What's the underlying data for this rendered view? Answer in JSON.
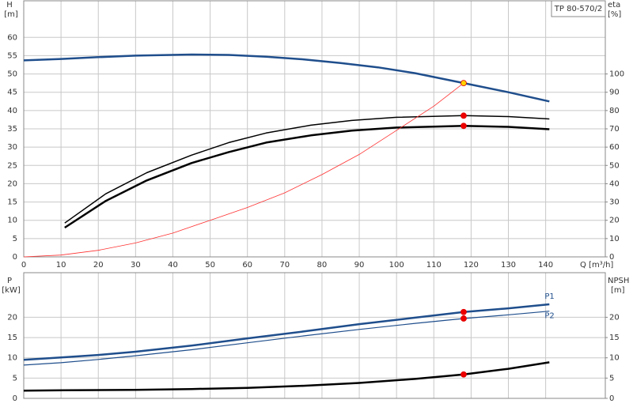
{
  "chart_data": [
    {
      "type": "line",
      "title": "TP 80-570/2",
      "ylabel": "H",
      "yunit": "[m]",
      "y2label": "eta",
      "y2unit": "[%]",
      "xlabel": "Q [m³/h]",
      "xlim": [
        0,
        156
      ],
      "xticks": [
        0,
        10,
        20,
        30,
        40,
        50,
        60,
        70,
        80,
        90,
        100,
        110,
        120,
        130,
        140
      ],
      "ylim": [
        0,
        70
      ],
      "yticks": [
        0,
        5,
        10,
        15,
        20,
        25,
        30,
        35,
        40,
        45,
        50,
        55,
        60
      ],
      "y2lim": [
        0,
        140
      ],
      "y2ticks": [
        0,
        10,
        20,
        30,
        40,
        50,
        60,
        70,
        80,
        90,
        100
      ],
      "grid": true,
      "series": [
        {
          "color": "#1f4e8c",
          "width": 2.5,
          "x": [
            0,
            10,
            20,
            30,
            45,
            55,
            65,
            75,
            85,
            95,
            105,
            118,
            130,
            141
          ],
          "values": [
            53.7,
            54.1,
            54.6,
            55,
            55.3,
            55.2,
            54.7,
            54,
            53,
            51.8,
            50.2,
            47.5,
            45,
            42.5
          ]
        },
        {
          "color": "#000000",
          "width": 1.5,
          "axis": "y2",
          "x": [
            11,
            22,
            33,
            45,
            55,
            65,
            77,
            88,
            100,
            118,
            130,
            141
          ],
          "values": [
            18.5,
            34.5,
            46,
            55.6,
            62.5,
            67.7,
            72,
            74.6,
            76.3,
            77.2,
            76.7,
            75.4
          ]
        },
        {
          "color": "#000000",
          "width": 2.5,
          "axis": "y2",
          "x": [
            11,
            22,
            33,
            45,
            55,
            65,
            77,
            88,
            100,
            118,
            130,
            141
          ],
          "values": [
            16,
            30.6,
            41.8,
            51.3,
            57.3,
            62.5,
            66.4,
            69,
            70.7,
            71.6,
            71.1,
            69.8
          ]
        },
        {
          "color": "#ff3030",
          "width": 0.8,
          "x": [
            0,
            10,
            20,
            30,
            40,
            50,
            60,
            70,
            80,
            90,
            100,
            110,
            118
          ],
          "values": [
            0,
            0.5,
            1.8,
            3.8,
            6.5,
            10,
            13.5,
            17.5,
            22.5,
            28,
            34.6,
            41.2,
            47.5
          ]
        }
      ],
      "points": [
        {
          "x": 118,
          "value": 47.5,
          "color": "#ffd200"
        },
        {
          "x": 118,
          "value": 77.2,
          "axis": "y2",
          "color": "#ee0000"
        },
        {
          "x": 118,
          "value": 71.6,
          "axis": "y2",
          "color": "#ee0000"
        }
      ]
    },
    {
      "type": "line",
      "ylabel": "P",
      "yunit": "[kW]",
      "y2label": "NPSH",
      "y2unit": "[m]",
      "xlim": [
        0,
        156
      ],
      "xgrid": [
        0,
        10,
        20,
        30,
        40,
        50,
        60,
        70,
        80,
        90,
        100,
        110,
        120,
        130,
        140
      ],
      "ylim": [
        0,
        31
      ],
      "yticks": [
        0,
        5,
        10,
        15,
        20
      ],
      "y2lim": [
        0,
        31
      ],
      "y2ticks": [
        0,
        5,
        10,
        15,
        20
      ],
      "grid": true,
      "series": [
        {
          "name": "P1",
          "color": "#1f4e8c",
          "width": 2.5,
          "x": [
            0,
            10,
            20,
            30,
            45,
            60,
            75,
            90,
            105,
            118,
            130,
            141
          ],
          "values": [
            9.5,
            10.1,
            10.7,
            11.5,
            13,
            14.8,
            16.5,
            18.3,
            19.9,
            21.3,
            22.2,
            23.2
          ]
        },
        {
          "name": "P2",
          "color": "#1f4e8c",
          "width": 1.2,
          "x": [
            0,
            10,
            20,
            30,
            45,
            60,
            75,
            90,
            105,
            118,
            130,
            141
          ],
          "values": [
            8.2,
            8.8,
            9.6,
            10.5,
            12,
            13.7,
            15.4,
            17,
            18.5,
            19.7,
            20.6,
            21.5
          ]
        },
        {
          "color": "#000000",
          "width": 2.5,
          "axis": "y2",
          "x": [
            0,
            11,
            30,
            45,
            60,
            75,
            90,
            105,
            118,
            130,
            141
          ],
          "values": [
            1.9,
            2.0,
            2.1,
            2.3,
            2.6,
            3.1,
            3.8,
            4.8,
            5.9,
            7.3,
            8.9
          ]
        }
      ],
      "points": [
        {
          "x": 118,
          "value": 21.3,
          "color": "#ee0000"
        },
        {
          "x": 118,
          "value": 19.7,
          "color": "#ee0000"
        },
        {
          "x": 118,
          "value": 5.9,
          "axis": "y2",
          "color": "#ee0000"
        }
      ]
    }
  ]
}
